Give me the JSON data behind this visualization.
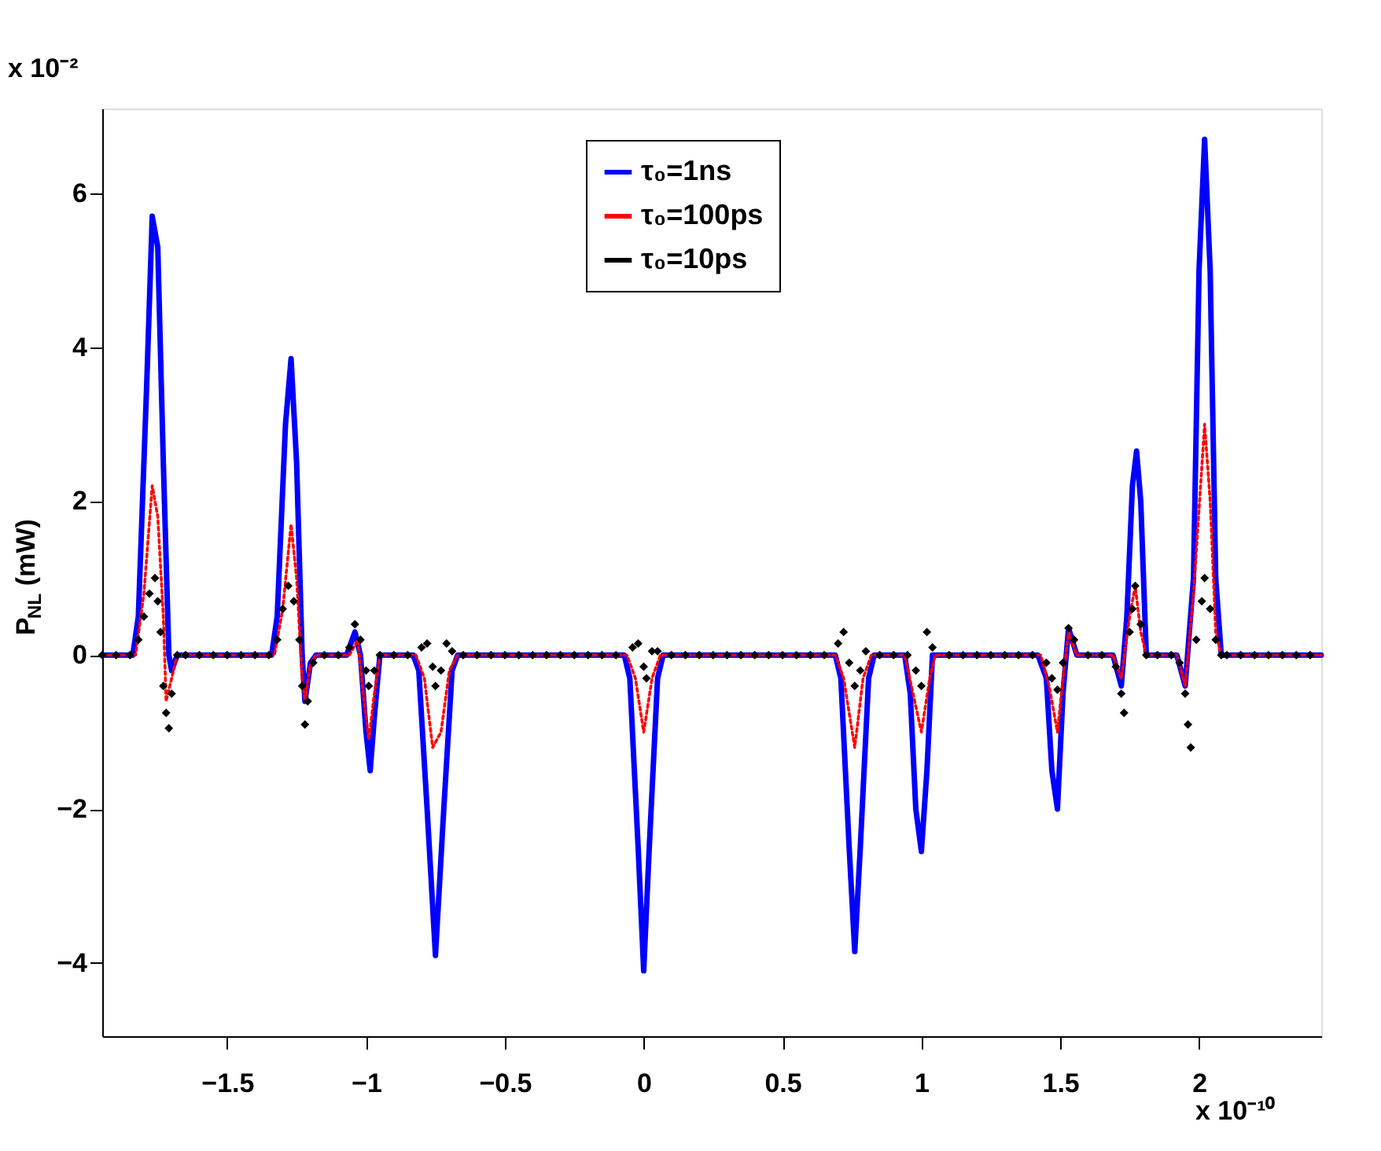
{
  "chart_data": {
    "type": "line",
    "ylabel": "P$_{NL}$ (mW)",
    "annotations": [
      "x 10⁻²",
      "x 10⁻¹⁰"
    ],
    "xlim": [
      -1.95,
      2.44
    ],
    "xticks": [
      -1.5,
      -1,
      -0.5,
      0,
      0.5,
      1,
      1.5,
      2
    ],
    "ylim": [
      -4.95,
      7.1
    ],
    "yticks": [
      -4,
      -2,
      0,
      2,
      4,
      6
    ],
    "grid": false,
    "legend": "top",
    "series": [
      {
        "name": "τ₀=1ns",
        "color": "#0000ff",
        "line_style": "solid",
        "marker": "none",
        "x": [
          -1.95,
          -1.84,
          -1.82,
          -1.79,
          -1.77,
          -1.75,
          -1.73,
          -1.71,
          -1.7,
          -1.68,
          -1.34,
          -1.32,
          -1.29,
          -1.27,
          -1.25,
          -1.23,
          -1.22,
          -1.2,
          -1.18,
          -1.07,
          -1.04,
          -1.02,
          -1.0,
          -0.985,
          -0.97,
          -0.95,
          -0.83,
          -0.81,
          -0.78,
          -0.75,
          -0.72,
          -0.69,
          -0.67,
          -0.07,
          -0.05,
          -0.02,
          0,
          0.02,
          0.05,
          0.07,
          0.69,
          0.71,
          0.74,
          0.76,
          0.78,
          0.81,
          0.83,
          0.94,
          0.96,
          0.98,
          1.0,
          1.02,
          1.04,
          1.42,
          1.45,
          1.47,
          1.49,
          1.51,
          1.53,
          1.56,
          1.69,
          1.72,
          1.74,
          1.76,
          1.775,
          1.79,
          1.81,
          1.92,
          1.95,
          1.98,
          2.0,
          2.02,
          2.04,
          2.06,
          2.08,
          2.44
        ],
        "values": [
          0,
          0,
          0.5,
          3.5,
          5.7,
          5.3,
          2.5,
          0,
          -0.2,
          0,
          0,
          0.5,
          3.0,
          3.85,
          2.5,
          0,
          -0.6,
          -0.1,
          0,
          0,
          0.3,
          0,
          -1.0,
          -1.5,
          -0.8,
          0,
          0,
          -0.2,
          -2.0,
          -3.9,
          -2.0,
          -0.2,
          0,
          0,
          -0.3,
          -2.5,
          -4.1,
          -2.5,
          -0.3,
          0,
          0,
          -0.3,
          -2.5,
          -3.85,
          -2.5,
          -0.3,
          0,
          0,
          -0.5,
          -2.0,
          -2.55,
          -1.5,
          0,
          0,
          -0.3,
          -1.5,
          -2.0,
          -0.5,
          0.35,
          0,
          0,
          -0.4,
          0.5,
          2.2,
          2.65,
          2.0,
          0,
          0,
          -0.4,
          1.0,
          5.0,
          6.7,
          5.0,
          1.0,
          0,
          0
        ]
      },
      {
        "name": "τ₀=100ps",
        "color": "#ff0000",
        "line_style": "dotted",
        "marker": "none",
        "x": [
          -1.95,
          -1.83,
          -1.8,
          -1.77,
          -1.75,
          -1.73,
          -1.72,
          -1.7,
          -1.68,
          -1.33,
          -1.3,
          -1.27,
          -1.25,
          -1.23,
          -1.22,
          -1.2,
          -1.18,
          -1.06,
          -1.03,
          -1.01,
          -0.99,
          -0.97,
          -0.95,
          -0.82,
          -0.79,
          -0.76,
          -0.73,
          -0.7,
          -0.67,
          -0.06,
          -0.03,
          0,
          0.03,
          0.06,
          0.69,
          0.72,
          0.76,
          0.79,
          0.82,
          0.94,
          0.97,
          1.0,
          1.03,
          1.05,
          1.43,
          1.46,
          1.49,
          1.51,
          1.53,
          1.56,
          1.69,
          1.72,
          1.75,
          1.77,
          1.79,
          1.81,
          1.92,
          1.95,
          1.98,
          2.02,
          2.04,
          2.06,
          2.08,
          2.44
        ],
        "values": [
          0,
          0,
          0.8,
          2.2,
          1.8,
          0.5,
          -0.6,
          -0.3,
          0,
          0,
          0.6,
          1.7,
          1.0,
          -0.3,
          -0.6,
          -0.1,
          0,
          0,
          0.2,
          -0.5,
          -1.1,
          -0.5,
          0,
          0,
          -0.3,
          -1.2,
          -1.0,
          -0.2,
          0,
          0,
          -0.3,
          -1.0,
          -0.3,
          0,
          0,
          -0.3,
          -1.2,
          -0.3,
          0,
          0,
          -0.5,
          -1.0,
          -0.3,
          0,
          0,
          -0.4,
          -1.0,
          -0.3,
          0.3,
          0,
          0,
          -0.3,
          0.5,
          0.9,
          0.3,
          0,
          0,
          -0.4,
          0.8,
          3.0,
          2.0,
          0.3,
          0,
          0
        ]
      },
      {
        "name": "τ₀=10ps",
        "color": "#000000",
        "type": "scatter",
        "marker": "diamond",
        "x": [
          -1.95,
          -1.9,
          -1.85,
          -1.82,
          -1.8,
          -1.78,
          -1.76,
          -1.75,
          -1.74,
          -1.73,
          -1.72,
          -1.71,
          -1.7,
          -1.68,
          -1.65,
          -1.6,
          -1.55,
          -1.5,
          -1.45,
          -1.4,
          -1.35,
          -1.32,
          -1.3,
          -1.28,
          -1.26,
          -1.24,
          -1.23,
          -1.22,
          -1.21,
          -1.19,
          -1.15,
          -1.1,
          -1.06,
          -1.04,
          -1.02,
          -1.0,
          -0.99,
          -0.97,
          -0.95,
          -0.9,
          -0.85,
          -0.8,
          -0.78,
          -0.76,
          -0.75,
          -0.73,
          -0.71,
          -0.69,
          -0.65,
          -0.6,
          -0.55,
          -0.5,
          -0.45,
          -0.4,
          -0.35,
          -0.3,
          -0.25,
          -0.2,
          -0.15,
          -0.1,
          -0.04,
          -0.02,
          0,
          0.01,
          0.03,
          0.05,
          0.1,
          0.15,
          0.2,
          0.25,
          0.3,
          0.35,
          0.4,
          0.45,
          0.5,
          0.55,
          0.6,
          0.65,
          0.7,
          0.72,
          0.74,
          0.76,
          0.78,
          0.8,
          0.85,
          0.9,
          0.95,
          0.98,
          1.0,
          1.02,
          1.04,
          1.1,
          1.15,
          1.2,
          1.25,
          1.3,
          1.35,
          1.4,
          1.45,
          1.47,
          1.49,
          1.51,
          1.53,
          1.55,
          1.6,
          1.65,
          1.7,
          1.72,
          1.73,
          1.75,
          1.76,
          1.77,
          1.79,
          1.81,
          1.85,
          1.9,
          1.93,
          1.95,
          1.96,
          1.97,
          1.99,
          2.01,
          2.02,
          2.04,
          2.06,
          2.08,
          2.1,
          2.15,
          2.2,
          2.25,
          2.3,
          2.35,
          2.4
        ],
        "values": [
          0,
          0,
          0,
          0.2,
          0.5,
          0.8,
          1.0,
          0.7,
          0.3,
          -0.4,
          -0.75,
          -0.95,
          -0.5,
          0,
          0,
          0,
          0,
          0,
          0,
          0,
          0,
          0.2,
          0.6,
          0.9,
          0.7,
          0.2,
          -0.4,
          -0.9,
          -0.6,
          -0.1,
          0,
          0,
          0.1,
          0.4,
          0.2,
          -0.2,
          -0.4,
          -0.2,
          0,
          0,
          0,
          0.1,
          0.15,
          -0.15,
          -0.4,
          -0.2,
          0.15,
          0.05,
          0,
          0,
          0,
          0,
          0,
          0,
          0,
          0,
          0,
          0,
          0,
          0,
          0.1,
          0.15,
          -0.15,
          -0.3,
          0.05,
          0.05,
          0,
          0,
          0,
          0,
          0,
          0,
          0,
          0,
          0,
          0,
          0,
          0,
          0.15,
          0.3,
          -0.1,
          -0.4,
          -0.2,
          0.05,
          0,
          0,
          0,
          -0.2,
          -0.4,
          0.3,
          0.1,
          0,
          0,
          0,
          0,
          0,
          0,
          0,
          -0.1,
          -0.3,
          -0.45,
          -0.1,
          0.35,
          0.2,
          0,
          0,
          -0.15,
          -0.5,
          -0.75,
          0.3,
          0.6,
          0.9,
          0.4,
          0,
          0,
          0,
          -0.1,
          -0.5,
          -0.9,
          -1.2,
          0.2,
          0.7,
          1.0,
          0.6,
          0.2,
          0,
          0,
          0,
          0,
          0,
          0,
          0,
          0
        ]
      }
    ]
  }
}
